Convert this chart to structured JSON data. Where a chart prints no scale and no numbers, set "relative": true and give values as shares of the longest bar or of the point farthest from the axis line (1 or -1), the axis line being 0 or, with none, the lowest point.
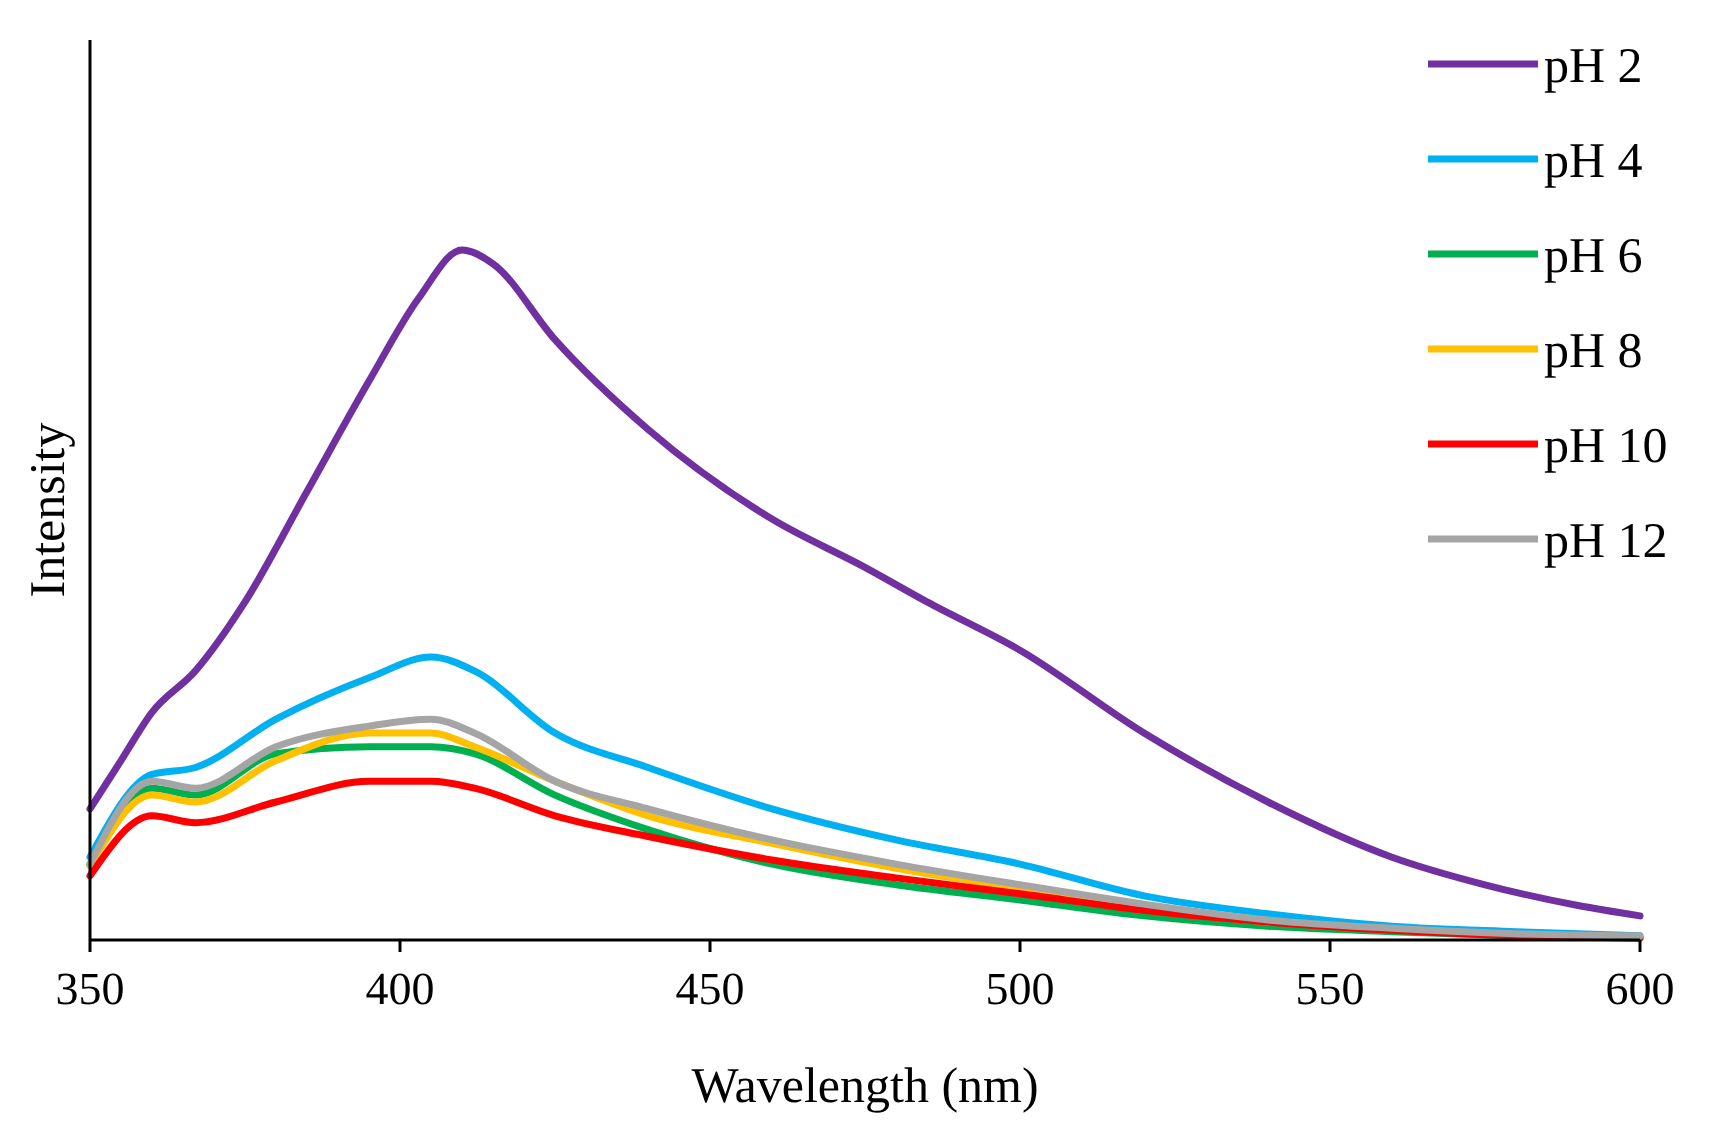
{
  "chart_data": {
    "type": "line",
    "xlabel": "Wavelength (nm)",
    "ylabel": "Intensity",
    "relative": true,
    "xlim": [
      350,
      600
    ],
    "xticks": [
      350,
      400,
      450,
      500,
      550,
      600
    ],
    "legend": "top right",
    "x": [
      350,
      355,
      360,
      367,
      375,
      385,
      395,
      403,
      410,
      415,
      425,
      440,
      460,
      475,
      485,
      500,
      520,
      540,
      560,
      575,
      590,
      600
    ],
    "series": [
      {
        "name": "pH 2",
        "color": "#7030a0",
        "values": [
          0.19,
          0.26,
          0.33,
          0.39,
          0.49,
          0.65,
          0.81,
          0.93,
          1,
          0.98,
          0.87,
          0.74,
          0.61,
          0.54,
          0.49,
          0.42,
          0.3,
          0.2,
          0.12,
          0.08,
          0.05,
          0.035
        ]
      },
      {
        "name": "pH 4",
        "color": "#00b0f0",
        "x": [
          350,
          360,
          367,
          380,
          395,
          405,
          412,
          425,
          440,
          460,
          480,
          500,
          520,
          540,
          560,
          580,
          600
        ],
        "values": [
          0.12,
          0.24,
          0.25,
          0.32,
          0.38,
          0.41,
          0.39,
          0.3,
          0.25,
          0.19,
          0.145,
          0.11,
          0.064,
          0.038,
          0.02,
          0.012,
          0.006
        ]
      },
      {
        "name": "pH 6",
        "color": "#00b050",
        "x": [
          350,
          360,
          367,
          380,
          395,
          405,
          412,
          425,
          440,
          460,
          480,
          500,
          520,
          540,
          560,
          580,
          600
        ],
        "values": [
          0.11,
          0.22,
          0.21,
          0.27,
          0.28,
          0.28,
          0.27,
          0.21,
          0.16,
          0.11,
          0.08,
          0.058,
          0.035,
          0.02,
          0.012,
          0.006,
          0.003
        ]
      },
      {
        "name": "pH 8",
        "color": "#ffc000",
        "x": [
          350,
          360,
          367,
          380,
          395,
          405,
          412,
          425,
          440,
          460,
          480,
          500,
          520,
          540
        ],
        "values": [
          0.107,
          0.21,
          0.2,
          0.26,
          0.3,
          0.3,
          0.28,
          0.23,
          0.18,
          0.14,
          0.104,
          0.075,
          0.046,
          0.026
        ]
      },
      {
        "name": "pH 10",
        "color": "#ff0000",
        "x": [
          350,
          360,
          367,
          380,
          395,
          405,
          412,
          425,
          440,
          460,
          480,
          500,
          520,
          540,
          560,
          580,
          600
        ],
        "values": [
          0.093,
          0.18,
          0.17,
          0.2,
          0.23,
          0.23,
          0.22,
          0.18,
          0.15,
          0.116,
          0.09,
          0.067,
          0.043,
          0.026,
          0.014,
          0.006,
          0.003
        ]
      },
      {
        "name": "pH 12",
        "color": "#a5a5a5",
        "x": [
          350,
          360,
          367,
          380,
          395,
          405,
          412,
          425,
          440,
          460,
          480,
          500,
          520,
          540,
          560,
          580,
          600
        ],
        "values": [
          0.11,
          0.23,
          0.22,
          0.28,
          0.31,
          0.32,
          0.3,
          0.23,
          0.19,
          0.145,
          0.11,
          0.08,
          0.052,
          0.029,
          0.017,
          0.009,
          0.006
        ]
      }
    ]
  }
}
